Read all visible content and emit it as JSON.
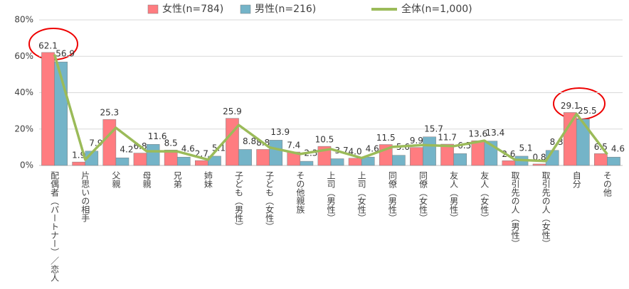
{
  "chart_data": {
    "type": "bar_line",
    "categories": [
      "配偶者（パートナー）／恋人",
      "片思いの相手",
      "父親",
      "母親",
      "兄弟",
      "姉妹",
      "子ども（男性）",
      "子ども（女性）",
      "その他親族",
      "上司（男性）",
      "上司（女性）",
      "同僚（男性）",
      "同僚（女性）",
      "友人（男性）",
      "友人（女性）",
      "取引先の人（男性）",
      "取引先の人（女性）",
      "自分",
      "その他"
    ],
    "series": [
      {
        "name": "女性(n=784)",
        "type": "bar",
        "color": "#ff7c80",
        "values": [
          62.1,
          1.9,
          25.3,
          6.8,
          8.5,
          2.7,
          25.9,
          8.8,
          7.4,
          10.5,
          4.0,
          11.5,
          9.9,
          11.7,
          13.6,
          2.6,
          0.8,
          29.1,
          6.5
        ],
        "value_labels": [
          "62.1",
          "1.9",
          "25.3",
          "6.8",
          "8.5",
          "2.7",
          "25.9",
          "8.8",
          "7.4",
          "10.5",
          "4.0",
          "11.5",
          "9.9",
          "11.7",
          "13.6",
          "2.6",
          "0.8",
          "29.1",
          "6.5"
        ]
      },
      {
        "name": "男性(n=216)",
        "type": "bar",
        "color": "#74b4c8",
        "values": [
          56.9,
          7.9,
          4.2,
          11.6,
          4.6,
          5.1,
          8.8,
          13.9,
          2.3,
          3.7,
          4.6,
          5.6,
          15.7,
          6.5,
          13.4,
          5.1,
          8.3,
          25.5,
          4.6
        ],
        "value_labels": [
          "56.9",
          "7.9",
          "4.2",
          "11.6",
          "4.6",
          "5.1",
          "8.8",
          "13.9",
          "2.3",
          "3.7",
          "4.6",
          "5.6",
          "15.7",
          "6.5",
          "13.4",
          "5.1",
          "8.3",
          "25.5",
          "4.6"
        ]
      },
      {
        "name": "全体(n=1,000)",
        "type": "line",
        "color": "#9bbb59",
        "values": [
          61.0,
          3.2,
          20.7,
          7.8,
          7.7,
          3.2,
          22.2,
          9.9,
          6.3,
          9.0,
          4.1,
          10.2,
          11.2,
          10.6,
          13.6,
          3.1,
          2.4,
          28.3,
          6.1
        ]
      }
    ],
    "ylim": [
      0,
      80
    ],
    "yticks": [
      {
        "value": 0,
        "label": "0%"
      },
      {
        "value": 20,
        "label": "20%"
      },
      {
        "value": 40,
        "label": "40%"
      },
      {
        "value": 60,
        "label": "60%"
      },
      {
        "value": 80,
        "label": "80%"
      }
    ],
    "grid": true
  }
}
